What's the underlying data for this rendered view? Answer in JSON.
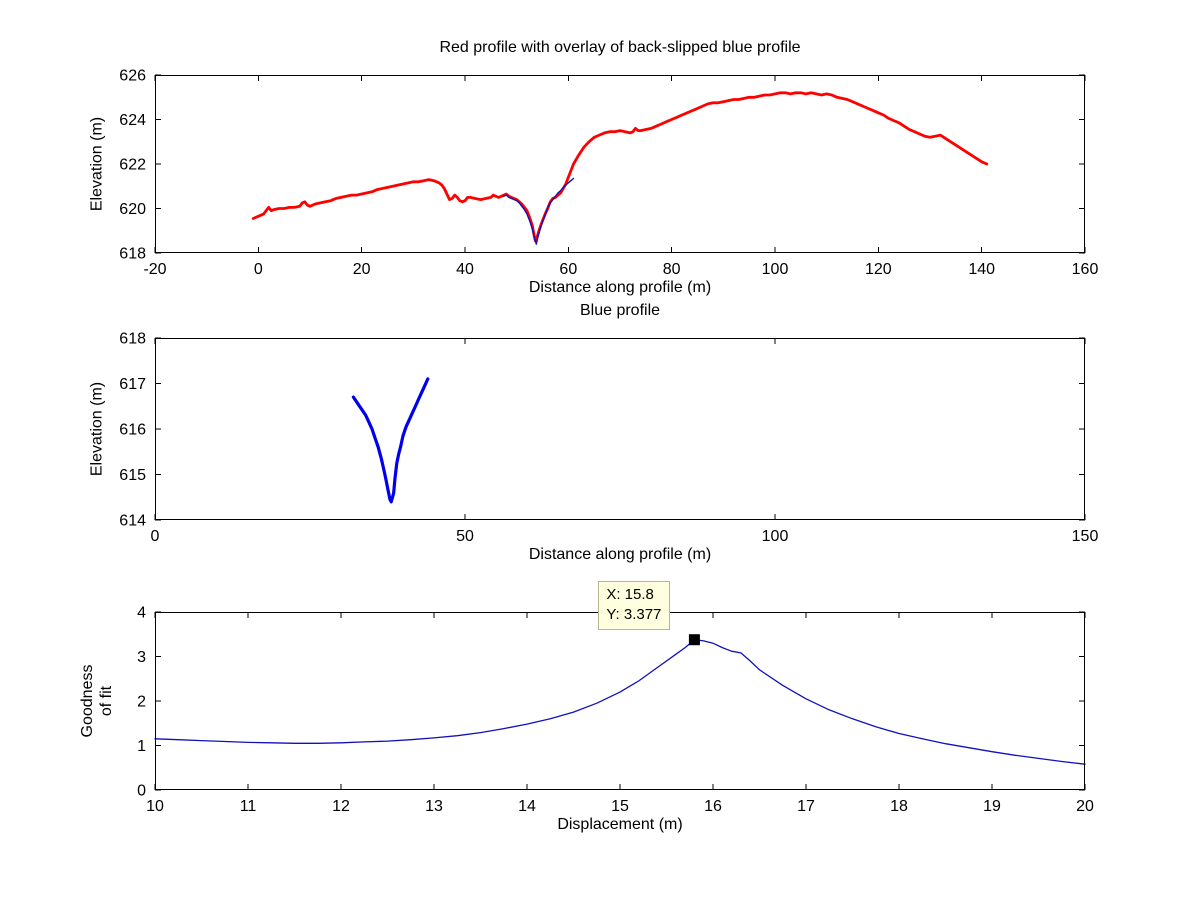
{
  "axis_color": "#000000",
  "chart_data": [
    {
      "type": "line",
      "title": "Red profile with overlay of back-slipped blue profile",
      "xlabel": "Distance along profile (m)",
      "ylabel": "Elevation (m)",
      "xlim": [
        -20,
        160
      ],
      "ylim": [
        618,
        626
      ],
      "xticks": [
        -20,
        0,
        20,
        40,
        60,
        80,
        100,
        120,
        140,
        160
      ],
      "yticks": [
        618,
        620,
        622,
        624,
        626
      ],
      "grid": false,
      "series": [
        {
          "name": "red-profile",
          "color": "#ff0000",
          "width": 2.8,
          "x": [
            -1,
            0,
            1,
            2,
            2.5,
            3,
            4,
            5,
            6,
            7,
            8,
            8.5,
            9,
            9.5,
            10,
            11,
            12,
            13,
            14,
            15,
            16,
            17,
            18,
            19,
            20,
            21,
            22,
            23,
            24,
            25,
            26,
            27,
            28,
            29,
            30,
            31,
            32,
            33,
            34,
            35,
            35.5,
            36,
            36.5,
            37,
            37.5,
            38,
            38.5,
            39,
            39.5,
            40,
            40.5,
            41,
            42,
            43,
            44,
            45,
            45.5,
            46,
            46.5,
            47,
            47.5,
            48,
            48.5,
            49,
            49.5,
            50,
            50.5,
            51,
            51.5,
            52,
            52.5,
            53,
            53.3,
            53.6,
            54,
            54.3,
            54.6,
            55,
            55.5,
            56,
            56.5,
            57,
            57.5,
            58,
            58.5,
            59,
            59.5,
            60,
            60.5,
            61,
            61.5,
            62,
            63,
            64,
            65,
            66,
            67,
            68,
            69,
            70,
            71,
            72,
            72.5,
            73,
            73.5,
            74,
            75,
            76,
            77,
            78,
            79,
            80,
            81,
            82,
            83,
            84,
            85,
            86,
            87,
            88,
            89,
            90,
            91,
            92,
            93,
            94,
            95,
            96,
            97,
            98,
            99,
            100,
            101,
            102,
            103,
            104,
            105,
            106,
            107,
            108,
            109,
            110,
            111,
            112,
            113,
            114,
            115,
            116,
            117,
            118,
            119,
            120,
            121,
            122,
            123,
            124,
            125,
            126,
            127,
            128,
            129,
            130,
            131,
            132,
            133,
            134,
            135,
            136,
            137,
            138,
            139,
            140,
            141
          ],
          "y": [
            619.55,
            619.65,
            619.75,
            620.05,
            619.9,
            619.95,
            620.0,
            620.0,
            620.05,
            620.05,
            620.1,
            620.25,
            620.3,
            620.15,
            620.1,
            620.2,
            620.25,
            620.3,
            620.35,
            620.45,
            620.5,
            620.55,
            620.6,
            620.6,
            620.65,
            620.7,
            620.75,
            620.85,
            620.9,
            620.95,
            621.0,
            621.05,
            621.1,
            621.15,
            621.2,
            621.2,
            621.25,
            621.3,
            621.25,
            621.15,
            621.05,
            620.9,
            620.65,
            620.4,
            620.45,
            620.6,
            620.5,
            620.35,
            620.3,
            620.35,
            620.5,
            620.5,
            620.45,
            620.4,
            620.45,
            620.5,
            620.6,
            620.55,
            620.5,
            620.55,
            620.6,
            620.65,
            620.55,
            620.5,
            620.45,
            620.4,
            620.3,
            620.2,
            620.05,
            619.9,
            619.6,
            619.25,
            618.9,
            618.55,
            618.75,
            619.0,
            619.2,
            619.45,
            619.75,
            620.0,
            620.3,
            620.45,
            620.5,
            620.6,
            620.7,
            620.9,
            621.1,
            621.4,
            621.7,
            622.0,
            622.2,
            622.4,
            622.75,
            623.0,
            623.2,
            623.3,
            623.4,
            623.45,
            623.45,
            623.5,
            623.45,
            623.4,
            623.45,
            623.6,
            623.5,
            623.5,
            623.55,
            623.6,
            623.7,
            623.8,
            623.9,
            624.0,
            624.1,
            624.2,
            624.3,
            624.4,
            624.5,
            624.6,
            624.7,
            624.75,
            624.75,
            624.8,
            624.85,
            624.9,
            624.9,
            624.95,
            625.0,
            625.0,
            625.05,
            625.1,
            625.1,
            625.15,
            625.2,
            625.2,
            625.15,
            625.2,
            625.2,
            625.15,
            625.2,
            625.15,
            625.1,
            625.15,
            625.1,
            625.0,
            624.95,
            624.9,
            624.8,
            624.7,
            624.6,
            624.5,
            624.4,
            624.3,
            624.2,
            624.05,
            623.95,
            623.85,
            623.7,
            623.55,
            623.45,
            623.35,
            623.25,
            623.2,
            623.25,
            623.3,
            623.15,
            623.0,
            622.85,
            622.7,
            622.55,
            622.4,
            622.25,
            622.1,
            622.0
          ]
        },
        {
          "name": "back-slipped-blue-profile",
          "color": "#1111bb",
          "width": 1.4,
          "x": [
            47.5,
            48,
            48.5,
            49,
            49.5,
            50,
            50.5,
            51,
            51.5,
            52,
            52.5,
            53,
            53.4,
            53.8,
            54.2,
            54.6,
            55,
            55.5,
            56,
            56.5,
            57,
            57.5,
            58,
            58.5,
            59,
            59.5,
            60,
            60.5,
            61
          ],
          "y": [
            620.55,
            620.6,
            620.5,
            620.45,
            620.4,
            620.35,
            620.25,
            620.1,
            619.95,
            619.75,
            619.45,
            619.1,
            618.7,
            618.4,
            618.8,
            619.1,
            619.4,
            619.7,
            620.05,
            620.25,
            620.4,
            620.55,
            620.7,
            620.8,
            620.95,
            621.05,
            621.15,
            621.25,
            621.35
          ]
        }
      ]
    },
    {
      "type": "line",
      "title": "Blue profile",
      "xlabel": "Distance along profile (m)",
      "ylabel": "Elevation (m)",
      "xlim": [
        0,
        150
      ],
      "ylim": [
        614,
        618
      ],
      "xticks": [
        0,
        50,
        100,
        150
      ],
      "yticks": [
        614,
        615,
        616,
        617,
        618
      ],
      "grid": false,
      "series": [
        {
          "name": "blue-profile",
          "color": "#0000ee",
          "width": 3.2,
          "x": [
            32,
            32.5,
            33,
            33.5,
            34,
            34.5,
            35,
            35.5,
            36,
            36.5,
            37,
            37.3,
            37.6,
            37.9,
            38.1,
            38.3,
            38.5,
            38.7,
            39,
            39.3,
            39.6,
            40,
            40.5,
            41,
            41.5,
            42,
            42.5,
            43,
            43.5,
            44
          ],
          "y": [
            616.7,
            616.6,
            616.5,
            616.4,
            616.3,
            616.15,
            616.0,
            615.8,
            615.6,
            615.35,
            615.05,
            614.85,
            614.65,
            614.45,
            614.4,
            614.5,
            614.6,
            614.9,
            615.25,
            615.45,
            615.6,
            615.85,
            616.05,
            616.2,
            616.35,
            616.5,
            616.65,
            616.8,
            616.95,
            617.1
          ]
        }
      ]
    },
    {
      "type": "line",
      "title": "",
      "xlabel": "Displacement (m)",
      "ylabel": "Goodness\nof fit",
      "xlim": [
        10,
        20
      ],
      "ylim": [
        0,
        4
      ],
      "xticks": [
        10,
        11,
        12,
        13,
        14,
        15,
        16,
        17,
        18,
        19,
        20
      ],
      "yticks": [
        0,
        1,
        2,
        3,
        4
      ],
      "grid": false,
      "series": [
        {
          "name": "goodness-of-fit",
          "color": "#1111bb",
          "width": 1.3,
          "x": [
            10,
            10.25,
            10.5,
            10.75,
            11,
            11.25,
            11.5,
            11.75,
            12,
            12.25,
            12.5,
            12.75,
            13,
            13.25,
            13.5,
            13.75,
            14,
            14.25,
            14.5,
            14.75,
            15,
            15.2,
            15.4,
            15.6,
            15.7,
            15.8,
            15.9,
            16,
            16.1,
            16.2,
            16.3,
            16.4,
            16.5,
            16.75,
            17,
            17.25,
            17.5,
            17.75,
            18,
            18.25,
            18.5,
            18.75,
            19,
            19.25,
            19.5,
            19.75,
            20
          ],
          "y": [
            1.15,
            1.13,
            1.11,
            1.09,
            1.07,
            1.06,
            1.05,
            1.05,
            1.06,
            1.08,
            1.1,
            1.13,
            1.17,
            1.22,
            1.29,
            1.38,
            1.48,
            1.6,
            1.75,
            1.95,
            2.2,
            2.45,
            2.75,
            3.05,
            3.2,
            3.377,
            3.35,
            3.3,
            3.2,
            3.12,
            3.08,
            2.9,
            2.7,
            2.35,
            2.05,
            1.8,
            1.6,
            1.42,
            1.27,
            1.15,
            1.04,
            0.95,
            0.86,
            0.78,
            0.71,
            0.64,
            0.58
          ]
        }
      ],
      "marker": {
        "x": 15.8,
        "y": 3.377,
        "color": "#000000",
        "size": 11
      },
      "tooltip": {
        "x_label": "X: 15.8",
        "y_label": "Y: 3.377",
        "bg": "#ffffdf",
        "border": "#b5b58f"
      }
    }
  ]
}
